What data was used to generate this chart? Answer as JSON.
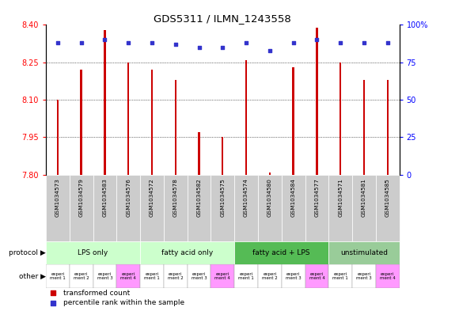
{
  "title": "GDS5311 / ILMN_1243558",
  "samples": [
    "GSM1034573",
    "GSM1034579",
    "GSM1034583",
    "GSM1034576",
    "GSM1034572",
    "GSM1034578",
    "GSM1034582",
    "GSM1034575",
    "GSM1034574",
    "GSM1034580",
    "GSM1034584",
    "GSM1034577",
    "GSM1034571",
    "GSM1034581",
    "GSM1034585"
  ],
  "bar_values": [
    8.1,
    8.22,
    8.38,
    8.25,
    8.22,
    8.18,
    7.97,
    7.95,
    8.26,
    7.81,
    8.23,
    8.39,
    8.25,
    8.18,
    8.18
  ],
  "dot_values": [
    88,
    88,
    90,
    88,
    88,
    87,
    85,
    85,
    88,
    83,
    88,
    90,
    88,
    88,
    88
  ],
  "ylim_left": [
    7.8,
    8.4
  ],
  "ylim_right": [
    0,
    100
  ],
  "yticks_left": [
    7.8,
    7.95,
    8.1,
    8.25,
    8.4
  ],
  "yticks_right": [
    0,
    25,
    50,
    75,
    100
  ],
  "bar_color": "#cc0000",
  "dot_color": "#3333cc",
  "bg_color": "#ffffff",
  "bar_width": 0.08,
  "protocol_groups": [
    {
      "label": "LPS only",
      "count": 4,
      "color": "#ccffcc"
    },
    {
      "label": "fatty acid only",
      "count": 4,
      "color": "#ccffcc"
    },
    {
      "label": "fatty acid + LPS",
      "count": 4,
      "color": "#55bb55"
    },
    {
      "label": "unstimulated",
      "count": 3,
      "color": "#99cc99"
    }
  ],
  "other_items": [
    {
      "label": "experi\nment 1",
      "color": "#ffffff"
    },
    {
      "label": "experi\nment 2",
      "color": "#ffffff"
    },
    {
      "label": "experi\nment 3",
      "color": "#ffffff"
    },
    {
      "label": "experi\nment 4",
      "color": "#ff99ff"
    },
    {
      "label": "experi\nment 1",
      "color": "#ffffff"
    },
    {
      "label": "experi\nment 2",
      "color": "#ffffff"
    },
    {
      "label": "experi\nment 3",
      "color": "#ffffff"
    },
    {
      "label": "experi\nment 4",
      "color": "#ff99ff"
    },
    {
      "label": "experi\nment 1",
      "color": "#ffffff"
    },
    {
      "label": "experi\nment 2",
      "color": "#ffffff"
    },
    {
      "label": "experi\nment 3",
      "color": "#ffffff"
    },
    {
      "label": "experi\nment 4",
      "color": "#ff99ff"
    },
    {
      "label": "experi\nment 1",
      "color": "#ffffff"
    },
    {
      "label": "experi\nment 3",
      "color": "#ffffff"
    },
    {
      "label": "experi\nment 4",
      "color": "#ff99ff"
    }
  ],
  "legend_items": [
    {
      "label": "transformed count",
      "color": "#cc0000"
    },
    {
      "label": "percentile rank within the sample",
      "color": "#3333cc"
    }
  ],
  "sample_box_color": "#cccccc",
  "label_protocol": "protocol ▶",
  "label_other": "other ▶"
}
